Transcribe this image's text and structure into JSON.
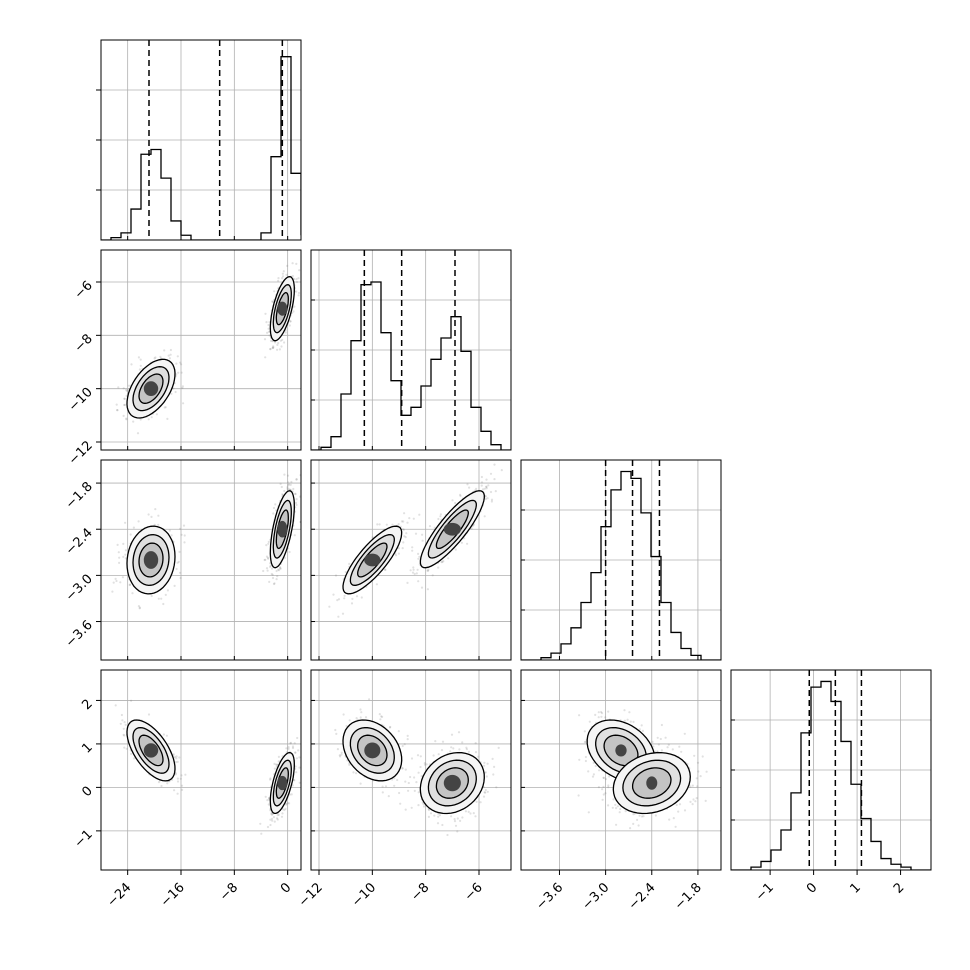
{
  "chart_data": {
    "type": "corner",
    "grid": true,
    "parameters": [
      {
        "index": 0,
        "range": [
          -28,
          2
        ],
        "ticks": [
          -24,
          -16,
          -8,
          0
        ],
        "tick_labels": [
          "−24",
          "−16",
          "−8",
          "0"
        ]
      },
      {
        "index": 1,
        "range": [
          -12.3,
          -4.8
        ],
        "ticks": [
          -12,
          -10,
          -8,
          -6
        ],
        "tick_labels": [
          "−12",
          "−10",
          "−8",
          "−6"
        ]
      },
      {
        "index": 2,
        "range": [
          -4.1,
          -1.5
        ],
        "ticks": [
          -3.6,
          -3.0,
          -2.4,
          -1.8
        ],
        "tick_labels": [
          "−3.6",
          "−3.0",
          "−2.4",
          "−1.8"
        ]
      },
      {
        "index": 3,
        "range": [
          -1.9,
          2.7
        ],
        "ticks": [
          -1,
          0,
          1,
          2
        ],
        "tick_labels": [
          "−1",
          "0",
          "1",
          "2"
        ]
      }
    ],
    "histograms": [
      {
        "param": 0,
        "bin_edges": [
          -28,
          -26.5,
          -25,
          -23.5,
          -22,
          -20.5,
          -19,
          -17.5,
          -16,
          -14.5,
          -13,
          -11.5,
          -10,
          -8.5,
          -7,
          -5.5,
          -4,
          -2.5,
          -1,
          0.5,
          2
        ],
        "counts": [
          0,
          1,
          3,
          13,
          36,
          38,
          26,
          8,
          2,
          0,
          0,
          0,
          0,
          0,
          0,
          0,
          3,
          35,
          77,
          28,
          2
        ],
        "quantiles": [
          -20.8,
          -10.2,
          -0.8
        ],
        "ylim": [
          0,
          84
        ]
      },
      {
        "param": 1,
        "bin_edges": [
          -12.3,
          -11.925,
          -11.55,
          -11.175,
          -10.8,
          -10.425,
          -10.05,
          -9.675,
          -9.3,
          -8.925,
          -8.55,
          -8.175,
          -7.8,
          -7.425,
          -7.05,
          -6.675,
          -6.3,
          -5.925,
          -5.55,
          -5.175,
          -4.8
        ],
        "counts": [
          0,
          1,
          5,
          21,
          41,
          62,
          63,
          44,
          26,
          13,
          16,
          24,
          34,
          42,
          50,
          37,
          16,
          7,
          2,
          0
        ],
        "quantiles": [
          -10.3,
          -8.9,
          -6.9
        ],
        "ylim": [
          0,
          75
        ]
      },
      {
        "param": 2,
        "bin_edges": [
          -4.1,
          -3.97,
          -3.84,
          -3.71,
          -3.58,
          -3.45,
          -3.32,
          -3.19,
          -3.06,
          -2.93,
          -2.8,
          -2.67,
          -2.54,
          -2.41,
          -2.28,
          -2.15,
          -2.02,
          -1.89,
          -1.76,
          -1.63,
          -1.5
        ],
        "counts": [
          0,
          0,
          1,
          3,
          7,
          14,
          25,
          38,
          58,
          74,
          82,
          79,
          64,
          45,
          25,
          12,
          5,
          2,
          0,
          0
        ],
        "quantiles": [
          -3.0,
          -2.65,
          -2.3
        ],
        "ylim": [
          0,
          87
        ]
      },
      {
        "param": 3,
        "bin_edges": [
          -1.9,
          -1.67,
          -1.44,
          -1.21,
          -0.98,
          -0.75,
          -0.52,
          -0.29,
          -0.06,
          0.17,
          0.4,
          0.63,
          0.86,
          1.09,
          1.32,
          1.55,
          1.78,
          2.01,
          2.24,
          2.47,
          2.7
        ],
        "counts": [
          0,
          0,
          1,
          3,
          7,
          14,
          27,
          48,
          64,
          66,
          59,
          45,
          30,
          18,
          10,
          4,
          2,
          1,
          0,
          0
        ],
        "quantiles": [
          -0.1,
          0.5,
          1.1
        ],
        "ylim": [
          0,
          70
        ]
      }
    ],
    "joint_modes": [
      {
        "weight": 0.4,
        "mean": [
          -20.5,
          -10.0,
          -2.8,
          0.85
        ],
        "sd": [
          1.8,
          0.55,
          0.22,
          0.35
        ],
        "corr": [
          [
            1,
            0.5,
            0.1,
            -0.6
          ],
          [
            0.5,
            1,
            0.8,
            -0.3
          ],
          [
            0.1,
            0.8,
            1,
            -0.3
          ],
          [
            -0.6,
            -0.3,
            -0.3,
            1
          ]
        ]
      },
      {
        "weight": 0.6,
        "mean": [
          -0.8,
          -7.0,
          -2.4,
          0.1
        ],
        "sd": [
          0.9,
          0.6,
          0.25,
          0.35
        ],
        "corr": [
          [
            1,
            0.6,
            0.6,
            0.6
          ],
          [
            0.6,
            1,
            0.85,
            0.2
          ],
          [
            0.6,
            0.85,
            1,
            0.2
          ],
          [
            0.6,
            0.2,
            0.2,
            1
          ]
        ]
      }
    ],
    "contour_levels": [
      0.393,
      0.675,
      0.865
    ]
  }
}
